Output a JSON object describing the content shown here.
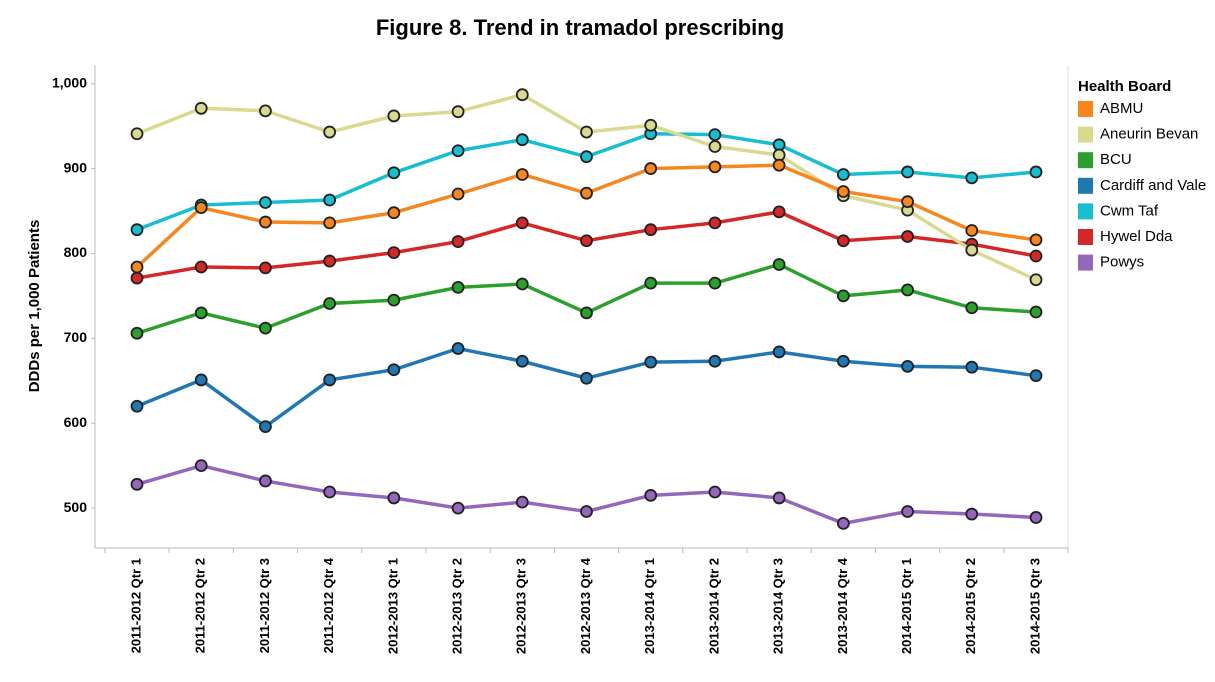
{
  "chart_data": {
    "type": "line",
    "title": "Figure 8. Trend in tramadol prescribing",
    "y_label": "DDDs per 1,000 Patients",
    "legend_title": "Health Board",
    "legend": "right",
    "categories": [
      "2011-2012 Qtr 1",
      "2011-2012 Qtr 2",
      "2011-2012 Qtr 3",
      "2011-2012 Qtr 4",
      "2012-2013 Qtr 1",
      "2012-2013 Qtr 2",
      "2012-2013 Qtr 3",
      "2012-2013 Qtr 4",
      "2013-2014 Qtr 1",
      "2013-2014 Qtr 2",
      "2013-2014 Qtr 3",
      "2013-2014 Qtr 4",
      "2014-2015 Qtr 1",
      "2014-2015 Qtr 2",
      "2014-2015 Qtr 3"
    ],
    "ylim": [
      453,
      1022
    ],
    "yticks": [
      500,
      600,
      700,
      800,
      900,
      {
        "value": 1000,
        "label": "1,000"
      }
    ],
    "series": [
      {
        "name": "ABMU",
        "color": "#f7871d",
        "values": [
          784,
          854,
          837,
          836,
          848,
          870,
          893,
          871,
          900,
          902,
          904,
          873,
          861,
          827,
          816
        ]
      },
      {
        "name": "Aneurin Bevan",
        "color": "#d9d98f",
        "values": [
          941,
          971,
          968,
          943,
          962,
          967,
          987,
          943,
          951,
          926,
          916,
          868,
          851,
          804,
          769
        ]
      },
      {
        "name": "BCU",
        "color": "#2ca02c",
        "values": [
          706,
          730,
          712,
          741,
          745,
          760,
          764,
          730,
          765,
          765,
          787,
          750,
          757,
          736,
          731
        ]
      },
      {
        "name": "Cardiff and Vale",
        "color": "#1f77b4",
        "values": [
          620,
          651,
          596,
          651,
          663,
          688,
          673,
          653,
          672,
          673,
          684,
          673,
          667,
          666,
          656
        ]
      },
      {
        "name": "Cwm Taf",
        "color": "#17becf",
        "values": [
          828,
          857,
          860,
          863,
          895,
          921,
          934,
          914,
          941,
          940,
          928,
          893,
          896,
          889,
          896
        ]
      },
      {
        "name": "Hywel Dda",
        "color": "#d62728",
        "values": [
          771,
          784,
          783,
          791,
          801,
          814,
          836,
          815,
          828,
          836,
          849,
          815,
          820,
          811,
          797
        ]
      },
      {
        "name": "Powys",
        "color": "#9467bd",
        "values": [
          528,
          550,
          532,
          519,
          512,
          500,
          507,
          496,
          515,
          519,
          512,
          482,
          496,
          493,
          489
        ]
      }
    ]
  }
}
